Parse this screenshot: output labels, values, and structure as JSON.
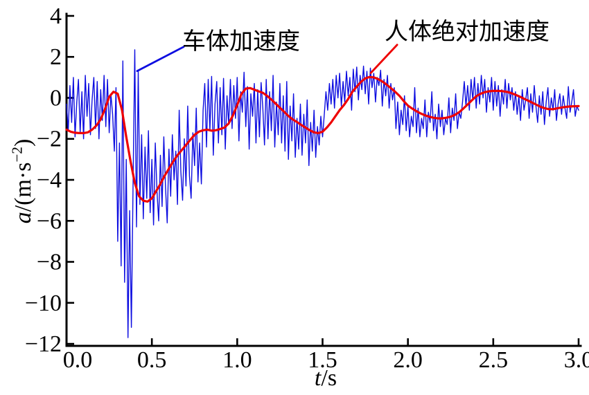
{
  "page": {
    "background": "#ffffff"
  },
  "chart_data": {
    "type": "line",
    "title": "",
    "xlabel": {
      "italic": "t",
      "rest": "/s"
    },
    "ylabel": {
      "italic": "a",
      "mid": "/(m·s",
      "sup": "−2",
      "end": ")"
    },
    "xlim": [
      0,
      3
    ],
    "ylim": [
      -12.1,
      4.1
    ],
    "grid": false,
    "legend_position": "none",
    "axis_color": "#000000",
    "x_ticks": [
      0,
      0.5,
      1.0,
      1.5,
      2.0,
      2.5,
      3.0
    ],
    "x_tick_labels": [
      "0.0",
      "0.5",
      "1.0",
      "1.5",
      "2.0",
      "2.5",
      "3.0"
    ],
    "y_ticks": [
      4,
      2,
      0,
      -2,
      -4,
      -6,
      -8,
      -10,
      -12
    ],
    "y_tick_labels": [
      "4",
      "2",
      "0",
      "−2",
      "−4",
      "−6",
      "−8",
      "−10",
      "−12"
    ],
    "series": [
      {
        "name": "车体加速度",
        "data_name": "vehicle-acceleration-line",
        "color": "#0d0de0",
        "width": 1.4,
        "t0": 0,
        "dt": 0.01,
        "values": [
          -0.3,
          -1.6,
          0.6,
          -1.2,
          1.0,
          -1.9,
          -0.2,
          0.9,
          -1.7,
          0.3,
          -2.0,
          1.1,
          -0.9,
          0.7,
          -1.8,
          -0.1,
          1.0,
          -1.5,
          0.8,
          -2.0,
          0.4,
          -1.1,
          1.1,
          -1.4,
          0.9,
          -1.7,
          0.2,
          -0.8,
          -2.6,
          0.5,
          -7.0,
          -2.2,
          -8.2,
          1.8,
          -9.0,
          -3.0,
          -11.7,
          -5.5,
          -11.2,
          -4.0,
          2.35,
          -6.3,
          1.3,
          -5.2,
          -1.8,
          -5.9,
          -2.4,
          -4.9,
          -1.6,
          -5.6,
          -3.0,
          -6.2,
          -2.2,
          -4.6,
          -6.0,
          -2.8,
          -5.3,
          -1.9,
          -4.4,
          -6.1,
          -2.5,
          -4.8,
          -1.8,
          -4.0,
          -2.6,
          -5.2,
          -0.6,
          -3.6,
          -5.0,
          -2.0,
          -4.3,
          -0.4,
          -3.8,
          -4.9,
          -1.7,
          -3.3,
          -0.5,
          -4.1,
          -2.2,
          -4.2,
          -0.6,
          0.7,
          -2.4,
          0.9,
          -1.6,
          1.05,
          -2.8,
          -0.3,
          0.8,
          -2.2,
          0.5,
          -1.8,
          0.95,
          -2.5,
          0.1,
          -1.3,
          0.9,
          -1.5,
          0.6,
          -1.0,
          1.0,
          -2.1,
          0.3,
          -0.7,
          1.25,
          -1.4,
          0.55,
          -2.5,
          0.2,
          -0.9,
          0.7,
          -2.2,
          0.4,
          -1.9,
          0.75,
          -0.5,
          -2.3,
          0.9,
          -2.0,
          0.3,
          -1.6,
          1.1,
          -2.4,
          -0.2,
          -1.8,
          0.7,
          -2.2,
          0.1,
          -2.6,
          0.8,
          -3.0,
          -0.4,
          -2.1,
          0.2,
          -2.9,
          -1.0,
          -2.5,
          -0.3,
          -2.8,
          -0.8,
          -2.2,
          -0.1,
          -3.3,
          -1.2,
          -2.6,
          -0.6,
          -2.9,
          -1.4,
          -2.3,
          -0.9,
          -1.9,
          -0.8,
          0.3,
          -0.6,
          0.7,
          -0.3,
          0.9,
          -0.5,
          1.1,
          0.0,
          1.2,
          -0.4,
          0.8,
          -0.2,
          1.3,
          0.1,
          1.0,
          -0.6,
          1.4,
          0.3,
          1.5,
          -0.1,
          1.1,
          0.4,
          1.55,
          0.2,
          1.3,
          -0.3,
          1.45,
          0.5,
          1.2,
          -0.2,
          1.0,
          0.6,
          1.35,
          -0.4,
          0.9,
          0.1,
          1.1,
          -0.5,
          0.7,
          -0.1,
          0.5,
          -1.5,
          -0.2,
          -1.8,
          -0.6,
          -1.3,
          0.1,
          -1.6,
          -0.4,
          -1.9,
          -0.9,
          -1.4,
          0.5,
          -1.7,
          -0.5,
          -1.9,
          -1.0,
          -1.5,
          -0.1,
          -1.9,
          -0.7,
          -1.2,
          0.3,
          -1.6,
          -0.8,
          -2.0,
          -0.3,
          -1.4,
          -0.6,
          -1.8,
          -1.0,
          -1.3,
          0.0,
          -1.7,
          -0.5,
          -1.1,
          0.2,
          -1.5,
          -0.7,
          -1.0,
          -0.2,
          0.8,
          -0.4,
          0.6,
          -0.6,
          0.9,
          -0.1,
          1.0,
          -0.5,
          0.7,
          -0.3,
          1.1,
          0.0,
          0.9,
          -0.7,
          0.5,
          -0.2,
          1.0,
          -0.6,
          0.8,
          -0.4,
          0.6,
          -0.9,
          0.4,
          -0.3,
          0.9,
          -0.5,
          0.7,
          -0.1,
          0.5,
          -0.6,
          0.3,
          -0.8,
          0.1,
          -1.1,
          0.4,
          -0.6,
          -0.1,
          0.5,
          -1.0,
          0.2,
          -0.7,
          0.6,
          -0.4,
          -1.2,
          0.1,
          -0.8,
          0.3,
          -1.3,
          -0.2,
          0.5,
          -0.9,
          0.0,
          -0.6,
          0.4,
          -1.1,
          -0.3,
          0.2,
          -0.8,
          0.1,
          -0.5,
          -1.0,
          0.55,
          -0.7,
          -0.2,
          0.4,
          -0.9,
          -0.4,
          -0.6
        ]
      },
      {
        "name": "人体绝对加速度",
        "data_name": "human-acceleration-line",
        "color": "#ee0000",
        "width": 3.2,
        "t0": 0,
        "dt": 0.025,
        "values": [
          -1.55,
          -1.65,
          -1.7,
          -1.72,
          -1.72,
          -1.68,
          -1.55,
          -1.35,
          -1.05,
          -0.55,
          0.05,
          0.3,
          0.2,
          -0.6,
          -1.9,
          -3.1,
          -4.15,
          -4.8,
          -5.02,
          -5.06,
          -4.9,
          -4.55,
          -4.2,
          -3.8,
          -3.45,
          -3.1,
          -2.8,
          -2.55,
          -2.3,
          -2.05,
          -1.8,
          -1.65,
          -1.58,
          -1.55,
          -1.6,
          -1.58,
          -1.52,
          -1.45,
          -1.25,
          -0.85,
          -0.35,
          0.2,
          0.45,
          0.48,
          0.4,
          0.32,
          0.25,
          0.1,
          -0.08,
          -0.28,
          -0.48,
          -0.68,
          -0.88,
          -1.05,
          -1.18,
          -1.32,
          -1.45,
          -1.58,
          -1.68,
          -1.72,
          -1.65,
          -1.45,
          -1.2,
          -0.9,
          -0.6,
          -0.35,
          -0.05,
          0.3,
          0.55,
          0.78,
          0.95,
          1.02,
          1.0,
          0.92,
          0.8,
          0.65,
          0.48,
          0.3,
          0.1,
          -0.15,
          -0.38,
          -0.52,
          -0.65,
          -0.76,
          -0.85,
          -0.92,
          -0.97,
          -1.0,
          -1.0,
          -0.97,
          -0.92,
          -0.83,
          -0.7,
          -0.52,
          -0.32,
          -0.12,
          0.08,
          0.2,
          0.28,
          0.32,
          0.34,
          0.34,
          0.33,
          0.3,
          0.25,
          0.17,
          0.08,
          -0.02,
          -0.12,
          -0.22,
          -0.32,
          -0.43,
          -0.5,
          -0.55,
          -0.55,
          -0.51,
          -0.47,
          -0.44,
          -0.42,
          -0.41,
          -0.4
        ]
      }
    ],
    "annotations": [
      {
        "text": "车体加速度",
        "color": "#000000",
        "line_color": "#0d0de0",
        "line_from": [
          0.686,
          2.49
        ],
        "line_to": [
          0.414,
          1.31
        ]
      },
      {
        "text": "人体绝对加速度",
        "color": "#000000",
        "line_color": "#ee0000",
        "line_from": [
          1.937,
          2.59
        ],
        "line_to": [
          1.782,
          1.21
        ]
      }
    ]
  }
}
